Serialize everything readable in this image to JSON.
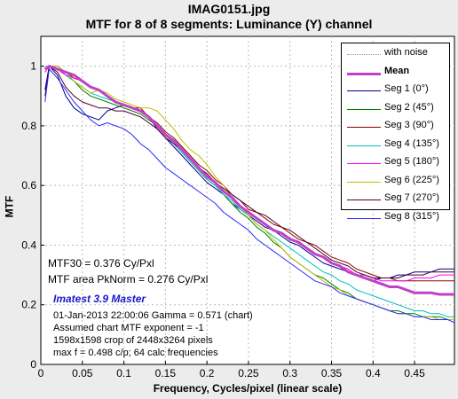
{
  "header": {
    "title": "IMAG0151.jpg",
    "subtitle": "MTF for 8 of 8 segments:  Luminance (Y) channel"
  },
  "annotations": {
    "mtf30": "MTF30 = 0.376 Cy/Pxl",
    "mtf_area": "MTF area PkNorm = 0.276 Cy/Pxl",
    "brand": "Imatest 3.9 Master",
    "date_gamma": "01-Jan-2013 22:00:06    Gamma = 0.571 (chart)",
    "exponent": "Assumed chart MTF exponent = -1",
    "crop": "1598x1598 crop of 2448x3264 pixels",
    "maxf": "max f = 0.498 c/p;  64 calc frequencies"
  },
  "chart_data": {
    "type": "line",
    "title": "MTF for 8 of 8 segments:  Luminance (Y) channel",
    "xlabel": "Frequency, Cycles/pixel (linear scale)",
    "ylabel": "MTF",
    "xlim": [
      0,
      0.498
    ],
    "ylim": [
      0,
      1.1
    ],
    "xticks": [
      0,
      0.05,
      0.1,
      0.15,
      0.2,
      0.25,
      0.3,
      0.35,
      0.4,
      0.45
    ],
    "xtick_labels": [
      "0",
      "0.05",
      "0.1",
      "0.15",
      "0.2",
      "0.25",
      "0.3",
      "0.35",
      "0.4",
      "0.45"
    ],
    "yticks": [
      0,
      0.2,
      0.4,
      0.6,
      0.8,
      1
    ],
    "ytick_labels": [
      "0",
      "0.2",
      "0.4",
      "0.6",
      "0.8",
      "1"
    ],
    "grid": true,
    "legend_position": "top-right",
    "legend_extra": "with noise",
    "series": [
      {
        "name": "Mean",
        "color": "#c040c8",
        "x": [
          0.005,
          0.01,
          0.02,
          0.03,
          0.04,
          0.05,
          0.06,
          0.07,
          0.08,
          0.09,
          0.1,
          0.11,
          0.12,
          0.13,
          0.14,
          0.15,
          0.16,
          0.17,
          0.18,
          0.19,
          0.2,
          0.21,
          0.22,
          0.23,
          0.24,
          0.25,
          0.26,
          0.27,
          0.28,
          0.29,
          0.3,
          0.31,
          0.32,
          0.33,
          0.34,
          0.35,
          0.36,
          0.37,
          0.38,
          0.39,
          0.4,
          0.41,
          0.42,
          0.43,
          0.44,
          0.45,
          0.46,
          0.47,
          0.48,
          0.49,
          0.498
        ],
        "y": [
          0.99,
          1.0,
          0.99,
          0.98,
          0.97,
          0.95,
          0.93,
          0.92,
          0.9,
          0.88,
          0.87,
          0.86,
          0.85,
          0.83,
          0.8,
          0.77,
          0.75,
          0.72,
          0.69,
          0.66,
          0.63,
          0.61,
          0.58,
          0.56,
          0.53,
          0.51,
          0.49,
          0.47,
          0.45,
          0.44,
          0.42,
          0.41,
          0.39,
          0.37,
          0.36,
          0.34,
          0.33,
          0.31,
          0.3,
          0.29,
          0.28,
          0.27,
          0.26,
          0.26,
          0.25,
          0.24,
          0.24,
          0.24,
          0.235,
          0.235,
          0.235
        ]
      },
      {
        "name": "Seg 1 (0°)",
        "color": "#00008b",
        "x": [
          0.005,
          0.01,
          0.02,
          0.03,
          0.04,
          0.05,
          0.06,
          0.07,
          0.08,
          0.09,
          0.1,
          0.11,
          0.12,
          0.13,
          0.14,
          0.15,
          0.16,
          0.17,
          0.18,
          0.19,
          0.2,
          0.21,
          0.22,
          0.23,
          0.24,
          0.25,
          0.26,
          0.27,
          0.28,
          0.29,
          0.3,
          0.31,
          0.32,
          0.33,
          0.34,
          0.35,
          0.36,
          0.37,
          0.38,
          0.39,
          0.4,
          0.41,
          0.42,
          0.43,
          0.44,
          0.45,
          0.46,
          0.47,
          0.48,
          0.49,
          0.498
        ],
        "y": [
          0.92,
          1.0,
          0.97,
          0.9,
          0.86,
          0.84,
          0.83,
          0.82,
          0.85,
          0.86,
          0.87,
          0.86,
          0.85,
          0.83,
          0.79,
          0.76,
          0.73,
          0.7,
          0.67,
          0.64,
          0.61,
          0.59,
          0.57,
          0.54,
          0.52,
          0.5,
          0.48,
          0.46,
          0.45,
          0.43,
          0.41,
          0.4,
          0.38,
          0.36,
          0.34,
          0.33,
          0.32,
          0.31,
          0.3,
          0.29,
          0.28,
          0.29,
          0.29,
          0.3,
          0.3,
          0.31,
          0.31,
          0.31,
          0.32,
          0.32,
          0.32
        ]
      },
      {
        "name": "Seg 2 (45°)",
        "color": "#008000",
        "x": [
          0.005,
          0.01,
          0.02,
          0.03,
          0.04,
          0.05,
          0.06,
          0.07,
          0.08,
          0.09,
          0.1,
          0.11,
          0.12,
          0.13,
          0.14,
          0.15,
          0.16,
          0.17,
          0.18,
          0.19,
          0.2,
          0.21,
          0.22,
          0.23,
          0.24,
          0.25,
          0.26,
          0.27,
          0.28,
          0.29,
          0.3,
          0.31,
          0.32,
          0.33,
          0.34,
          0.35,
          0.36,
          0.37,
          0.38,
          0.39,
          0.4,
          0.41,
          0.42,
          0.43,
          0.44,
          0.45,
          0.46,
          0.47,
          0.48,
          0.49,
          0.498
        ],
        "y": [
          0.99,
          1.0,
          0.99,
          0.97,
          0.95,
          0.92,
          0.9,
          0.89,
          0.88,
          0.87,
          0.86,
          0.85,
          0.84,
          0.82,
          0.8,
          0.77,
          0.74,
          0.71,
          0.68,
          0.65,
          0.62,
          0.6,
          0.57,
          0.54,
          0.51,
          0.49,
          0.46,
          0.44,
          0.41,
          0.39,
          0.36,
          0.34,
          0.32,
          0.3,
          0.29,
          0.27,
          0.25,
          0.24,
          0.22,
          0.21,
          0.2,
          0.19,
          0.18,
          0.18,
          0.17,
          0.17,
          0.16,
          0.16,
          0.16,
          0.15,
          0.15
        ]
      },
      {
        "name": "Seg 3 (90°)",
        "color": "#8b0000",
        "x": [
          0.005,
          0.01,
          0.02,
          0.03,
          0.04,
          0.05,
          0.06,
          0.07,
          0.08,
          0.09,
          0.1,
          0.11,
          0.12,
          0.13,
          0.14,
          0.15,
          0.16,
          0.17,
          0.18,
          0.19,
          0.2,
          0.21,
          0.22,
          0.23,
          0.24,
          0.25,
          0.26,
          0.27,
          0.28,
          0.29,
          0.3,
          0.31,
          0.32,
          0.33,
          0.34,
          0.35,
          0.36,
          0.37,
          0.38,
          0.39,
          0.4,
          0.41,
          0.42,
          0.43,
          0.44,
          0.45,
          0.46,
          0.47,
          0.48,
          0.49,
          0.498
        ],
        "y": [
          0.98,
          1.0,
          1.0,
          0.98,
          0.96,
          0.95,
          0.93,
          0.92,
          0.9,
          0.88,
          0.87,
          0.86,
          0.86,
          0.83,
          0.81,
          0.78,
          0.76,
          0.73,
          0.7,
          0.67,
          0.65,
          0.62,
          0.6,
          0.57,
          0.55,
          0.52,
          0.51,
          0.49,
          0.47,
          0.46,
          0.44,
          0.42,
          0.41,
          0.4,
          0.38,
          0.36,
          0.35,
          0.34,
          0.32,
          0.31,
          0.3,
          0.29,
          0.29,
          0.28,
          0.28,
          0.28,
          0.28,
          0.28,
          0.28,
          0.28,
          0.28
        ]
      },
      {
        "name": "Seg 4 (135°)",
        "color": "#00bfbf",
        "x": [
          0.005,
          0.01,
          0.02,
          0.03,
          0.04,
          0.05,
          0.06,
          0.07,
          0.08,
          0.09,
          0.1,
          0.11,
          0.12,
          0.13,
          0.14,
          0.15,
          0.16,
          0.17,
          0.18,
          0.19,
          0.2,
          0.21,
          0.22,
          0.23,
          0.24,
          0.25,
          0.26,
          0.27,
          0.28,
          0.29,
          0.3,
          0.31,
          0.32,
          0.33,
          0.34,
          0.35,
          0.36,
          0.37,
          0.38,
          0.39,
          0.4,
          0.41,
          0.42,
          0.43,
          0.44,
          0.45,
          0.46,
          0.47,
          0.48,
          0.49,
          0.498
        ],
        "y": [
          0.99,
          1.0,
          0.99,
          0.97,
          0.95,
          0.93,
          0.91,
          0.9,
          0.89,
          0.88,
          0.87,
          0.86,
          0.85,
          0.83,
          0.8,
          0.77,
          0.74,
          0.71,
          0.68,
          0.65,
          0.62,
          0.6,
          0.57,
          0.55,
          0.52,
          0.5,
          0.47,
          0.45,
          0.43,
          0.41,
          0.39,
          0.37,
          0.35,
          0.33,
          0.31,
          0.3,
          0.28,
          0.27,
          0.25,
          0.24,
          0.23,
          0.22,
          0.21,
          0.2,
          0.19,
          0.18,
          0.18,
          0.17,
          0.17,
          0.16,
          0.16
        ]
      },
      {
        "name": "Seg 5 (180°)",
        "color": "#ff00ff",
        "x": [
          0.005,
          0.01,
          0.02,
          0.03,
          0.04,
          0.05,
          0.06,
          0.07,
          0.08,
          0.09,
          0.1,
          0.11,
          0.12,
          0.13,
          0.14,
          0.15,
          0.16,
          0.17,
          0.18,
          0.19,
          0.2,
          0.21,
          0.22,
          0.23,
          0.24,
          0.25,
          0.26,
          0.27,
          0.28,
          0.29,
          0.3,
          0.31,
          0.32,
          0.33,
          0.34,
          0.35,
          0.36,
          0.37,
          0.38,
          0.39,
          0.4,
          0.41,
          0.42,
          0.43,
          0.44,
          0.45,
          0.46,
          0.47,
          0.48,
          0.49,
          0.498
        ],
        "y": [
          0.98,
          1.0,
          0.99,
          0.97,
          0.96,
          0.95,
          0.93,
          0.92,
          0.9,
          0.88,
          0.87,
          0.86,
          0.85,
          0.83,
          0.8,
          0.77,
          0.75,
          0.72,
          0.69,
          0.66,
          0.63,
          0.61,
          0.58,
          0.56,
          0.53,
          0.51,
          0.49,
          0.47,
          0.45,
          0.44,
          0.42,
          0.41,
          0.39,
          0.37,
          0.36,
          0.34,
          0.33,
          0.32,
          0.3,
          0.3,
          0.29,
          0.28,
          0.28,
          0.28,
          0.28,
          0.29,
          0.29,
          0.29,
          0.3,
          0.3,
          0.3
        ]
      },
      {
        "name": "Seg 6 (225°)",
        "color": "#bfbf00",
        "x": [
          0.005,
          0.01,
          0.02,
          0.03,
          0.04,
          0.05,
          0.06,
          0.07,
          0.08,
          0.09,
          0.1,
          0.11,
          0.12,
          0.13,
          0.14,
          0.15,
          0.16,
          0.17,
          0.18,
          0.19,
          0.2,
          0.21,
          0.22,
          0.23,
          0.24,
          0.25,
          0.26,
          0.27,
          0.28,
          0.29,
          0.3,
          0.31,
          0.32,
          0.33,
          0.34,
          0.35,
          0.36,
          0.37,
          0.38,
          0.39,
          0.4,
          0.41,
          0.42,
          0.43,
          0.44,
          0.45,
          0.46,
          0.47,
          0.48,
          0.49,
          0.498
        ],
        "y": [
          0.99,
          1.0,
          1.0,
          0.98,
          0.95,
          0.93,
          0.91,
          0.92,
          0.91,
          0.89,
          0.88,
          0.87,
          0.86,
          0.86,
          0.85,
          0.82,
          0.79,
          0.75,
          0.72,
          0.7,
          0.67,
          0.63,
          0.6,
          0.56,
          0.53,
          0.5,
          0.47,
          0.45,
          0.42,
          0.39,
          0.36,
          0.34,
          0.32,
          0.3,
          0.28,
          0.26,
          0.25,
          0.23,
          0.22,
          0.21,
          0.2,
          0.19,
          0.18,
          0.17,
          0.17,
          0.16,
          0.16,
          0.16,
          0.15,
          0.15,
          0.15
        ]
      },
      {
        "name": "Seg 7 (270°)",
        "color": "#4b0028",
        "x": [
          0.005,
          0.01,
          0.02,
          0.03,
          0.04,
          0.05,
          0.06,
          0.07,
          0.08,
          0.09,
          0.1,
          0.11,
          0.12,
          0.13,
          0.14,
          0.15,
          0.16,
          0.17,
          0.18,
          0.19,
          0.2,
          0.21,
          0.22,
          0.23,
          0.24,
          0.25,
          0.26,
          0.27,
          0.28,
          0.29,
          0.3,
          0.31,
          0.32,
          0.33,
          0.34,
          0.35,
          0.36,
          0.37,
          0.38,
          0.39,
          0.4,
          0.41,
          0.42,
          0.43,
          0.44,
          0.45,
          0.46,
          0.47,
          0.48,
          0.49,
          0.498
        ],
        "y": [
          0.9,
          1.0,
          0.98,
          0.93,
          0.9,
          0.88,
          0.87,
          0.86,
          0.86,
          0.85,
          0.85,
          0.84,
          0.83,
          0.81,
          0.79,
          0.76,
          0.74,
          0.72,
          0.69,
          0.66,
          0.64,
          0.61,
          0.59,
          0.57,
          0.55,
          0.53,
          0.51,
          0.5,
          0.48,
          0.46,
          0.45,
          0.43,
          0.41,
          0.39,
          0.37,
          0.35,
          0.34,
          0.33,
          0.31,
          0.3,
          0.29,
          0.29,
          0.29,
          0.29,
          0.3,
          0.3,
          0.3,
          0.31,
          0.31,
          0.31,
          0.31
        ]
      },
      {
        "name": "Seg 8 (315°)",
        "color": "#2a2aff",
        "x": [
          0.005,
          0.01,
          0.02,
          0.03,
          0.04,
          0.05,
          0.06,
          0.07,
          0.08,
          0.09,
          0.1,
          0.11,
          0.12,
          0.13,
          0.14,
          0.15,
          0.16,
          0.17,
          0.18,
          0.19,
          0.2,
          0.21,
          0.22,
          0.23,
          0.24,
          0.25,
          0.26,
          0.27,
          0.28,
          0.29,
          0.3,
          0.31,
          0.32,
          0.33,
          0.34,
          0.35,
          0.36,
          0.37,
          0.38,
          0.39,
          0.4,
          0.41,
          0.42,
          0.43,
          0.44,
          0.45,
          0.46,
          0.47,
          0.48,
          0.49,
          0.498
        ],
        "y": [
          0.88,
          0.99,
          0.96,
          0.92,
          0.88,
          0.85,
          0.82,
          0.8,
          0.81,
          0.8,
          0.79,
          0.77,
          0.74,
          0.72,
          0.69,
          0.66,
          0.64,
          0.62,
          0.6,
          0.58,
          0.56,
          0.54,
          0.51,
          0.49,
          0.47,
          0.45,
          0.42,
          0.4,
          0.38,
          0.36,
          0.34,
          0.32,
          0.3,
          0.28,
          0.27,
          0.26,
          0.24,
          0.23,
          0.22,
          0.21,
          0.2,
          0.19,
          0.18,
          0.17,
          0.17,
          0.16,
          0.16,
          0.15,
          0.15,
          0.15,
          0.14
        ]
      }
    ]
  }
}
